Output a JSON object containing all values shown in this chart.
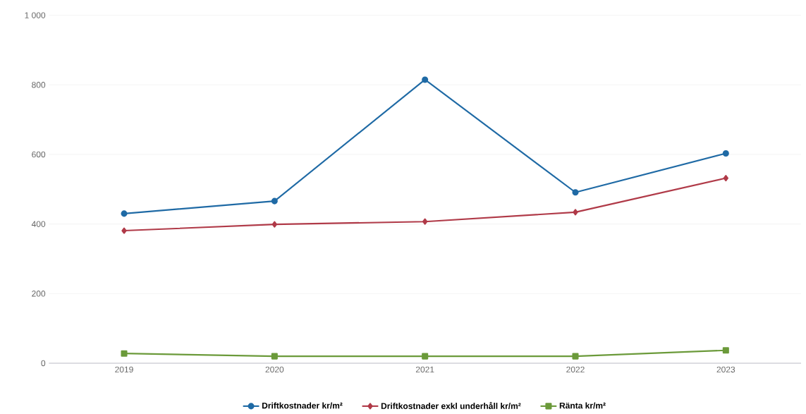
{
  "chart_data": {
    "type": "line",
    "categories": [
      "2019",
      "2020",
      "2021",
      "2022",
      "2023"
    ],
    "series": [
      {
        "name": "Driftkostnader kr/m²",
        "color": "#1f6aa5",
        "marker": "circle",
        "values": [
          430,
          466,
          815,
          491,
          603
        ]
      },
      {
        "name": "Driftkostnader exkl underhåll kr/m²",
        "color": "#b03a48",
        "marker": "diamond",
        "values": [
          381,
          399,
          407,
          434,
          532
        ]
      },
      {
        "name": "Ränta kr/m²",
        "color": "#6b9a3a",
        "marker": "square",
        "values": [
          28,
          20,
          20,
          20,
          37
        ]
      }
    ],
    "ylim": [
      0,
      1000
    ],
    "yticks": [
      0,
      200,
      400,
      600,
      800,
      {
        "value": 1000,
        "label": "1 000"
      }
    ],
    "grid": "y",
    "legend": "bottom",
    "line_style": "solid"
  }
}
